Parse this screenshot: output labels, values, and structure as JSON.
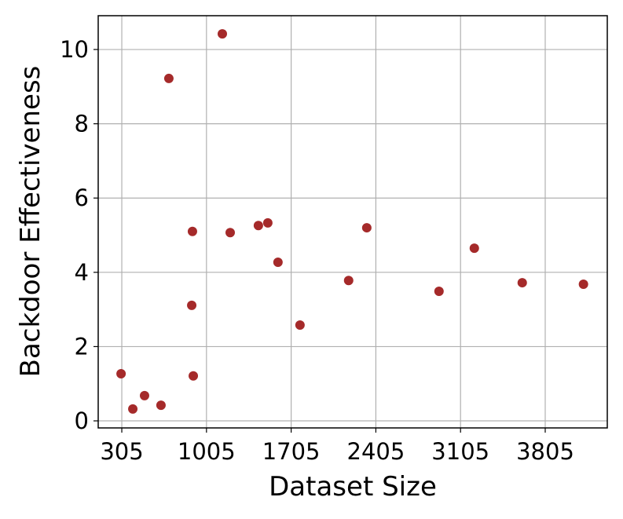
{
  "chart_data": {
    "type": "scatter",
    "xlabel": "Dataset Size",
    "ylabel": "Backdoor Effectiveness",
    "color": "#a52a2a",
    "grid": true,
    "x": [
      299,
      396,
      493,
      629,
      694,
      883,
      889,
      896,
      1136,
      1201,
      1434,
      1512,
      1596,
      1778,
      2180,
      2330,
      2927,
      3219,
      3615,
      4121
    ],
    "values": [
      1.27,
      0.32,
      0.68,
      0.42,
      9.22,
      3.11,
      5.1,
      1.21,
      10.42,
      5.07,
      5.26,
      5.33,
      4.27,
      2.58,
      3.78,
      5.2,
      3.49,
      4.65,
      3.72,
      3.68
    ],
    "xlim": [
      110,
      4318
    ],
    "xticks": [
      305,
      1005,
      1705,
      2405,
      3105,
      3805
    ],
    "ylim": [
      -0.19,
      10.91
    ],
    "yticks": [
      0,
      2,
      4,
      6,
      8,
      10
    ]
  }
}
